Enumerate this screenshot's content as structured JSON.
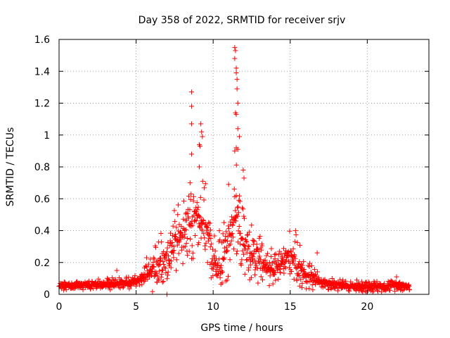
{
  "chart_data": {
    "type": "scatter",
    "title": "Day 358 of 2022, SRMTID for receiver srjv",
    "xlabel": "GPS time / hours",
    "ylabel": "SRMTID / TECUs",
    "xlim": [
      0,
      24
    ],
    "ylim": [
      0,
      1.6
    ],
    "grid": true,
    "marker": "+",
    "color": "#ff0000",
    "x_ticks": [
      0,
      5,
      10,
      15,
      20
    ],
    "x_tick_labels": [
      "0",
      "5",
      "10",
      "15",
      "20"
    ],
    "y_ticks": [
      0,
      0.2,
      0.4,
      0.6,
      0.8,
      1,
      1.2,
      1.4,
      1.6
    ],
    "y_tick_labels": [
      "0",
      "0.2",
      "0.4",
      "0.6",
      "0.8",
      "1",
      "1.2",
      "1.4",
      "1.6"
    ],
    "profile": [
      [
        0,
        0.05
      ],
      [
        1,
        0.06
      ],
      [
        2,
        0.06
      ],
      [
        3,
        0.06
      ],
      [
        4,
        0.07
      ],
      [
        5,
        0.08
      ],
      [
        6,
        0.14
      ],
      [
        7,
        0.25
      ],
      [
        8,
        0.38
      ],
      [
        9,
        0.5
      ],
      [
        9.5,
        0.45
      ],
      [
        10,
        0.2
      ],
      [
        10.5,
        0.15
      ],
      [
        11,
        0.4
      ],
      [
        11.5,
        0.5
      ],
      [
        12,
        0.3
      ],
      [
        13,
        0.2
      ],
      [
        14,
        0.15
      ],
      [
        15,
        0.25
      ],
      [
        15.5,
        0.2
      ],
      [
        16,
        0.12
      ],
      [
        17,
        0.08
      ],
      [
        18,
        0.06
      ],
      [
        19,
        0.05
      ],
      [
        20,
        0.05
      ],
      [
        21,
        0.05
      ],
      [
        22,
        0.06
      ],
      [
        22.75,
        0.05
      ]
    ],
    "point_interval_hours": 0.0167,
    "noise_band": [
      [
        0,
        0.03
      ],
      [
        5,
        0.05
      ],
      [
        6.5,
        0.2
      ],
      [
        8,
        0.3
      ],
      [
        9,
        0.3
      ],
      [
        10,
        0.2
      ],
      [
        11,
        0.4
      ],
      [
        12,
        0.25
      ],
      [
        14,
        0.15
      ],
      [
        15.5,
        0.2
      ],
      [
        17,
        0.05
      ],
      [
        22.75,
        0.04
      ]
    ],
    "outliers": [
      {
        "x": 8.6,
        "y": 1.27
      },
      {
        "x": 8.6,
        "y": 1.18
      },
      {
        "x": 8.6,
        "y": 1.07
      },
      {
        "x": 8.6,
        "y": 0.88
      },
      {
        "x": 9.1,
        "y": 0.94
      },
      {
        "x": 9.15,
        "y": 0.93
      },
      {
        "x": 9.2,
        "y": 1.07
      },
      {
        "x": 9.25,
        "y": 1.02
      },
      {
        "x": 9.3,
        "y": 0.99
      },
      {
        "x": 9.1,
        "y": 0.8
      },
      {
        "x": 11.4,
        "y": 1.55
      },
      {
        "x": 11.4,
        "y": 1.48
      },
      {
        "x": 11.45,
        "y": 1.53
      },
      {
        "x": 11.5,
        "y": 1.42
      },
      {
        "x": 11.5,
        "y": 1.39
      },
      {
        "x": 11.55,
        "y": 1.35
      },
      {
        "x": 11.55,
        "y": 1.29
      },
      {
        "x": 11.6,
        "y": 1.2
      },
      {
        "x": 11.45,
        "y": 1.14
      },
      {
        "x": 11.5,
        "y": 1.13
      },
      {
        "x": 11.6,
        "y": 1.04
      },
      {
        "x": 11.5,
        "y": 0.92
      },
      {
        "x": 11.6,
        "y": 0.91
      },
      {
        "x": 11.4,
        "y": 0.9
      },
      {
        "x": 11.7,
        "y": 0.99
      },
      {
        "x": 11.95,
        "y": 0.78
      },
      {
        "x": 12.0,
        "y": 0.73
      },
      {
        "x": 11.5,
        "y": 0.62
      },
      {
        "x": 8.5,
        "y": 0.7
      },
      {
        "x": 7.0,
        "y": 0.0
      },
      {
        "x": 3.75,
        "y": 0.15
      },
      {
        "x": 16.75,
        "y": 0.26
      },
      {
        "x": 21.9,
        "y": 0.11
      }
    ]
  }
}
